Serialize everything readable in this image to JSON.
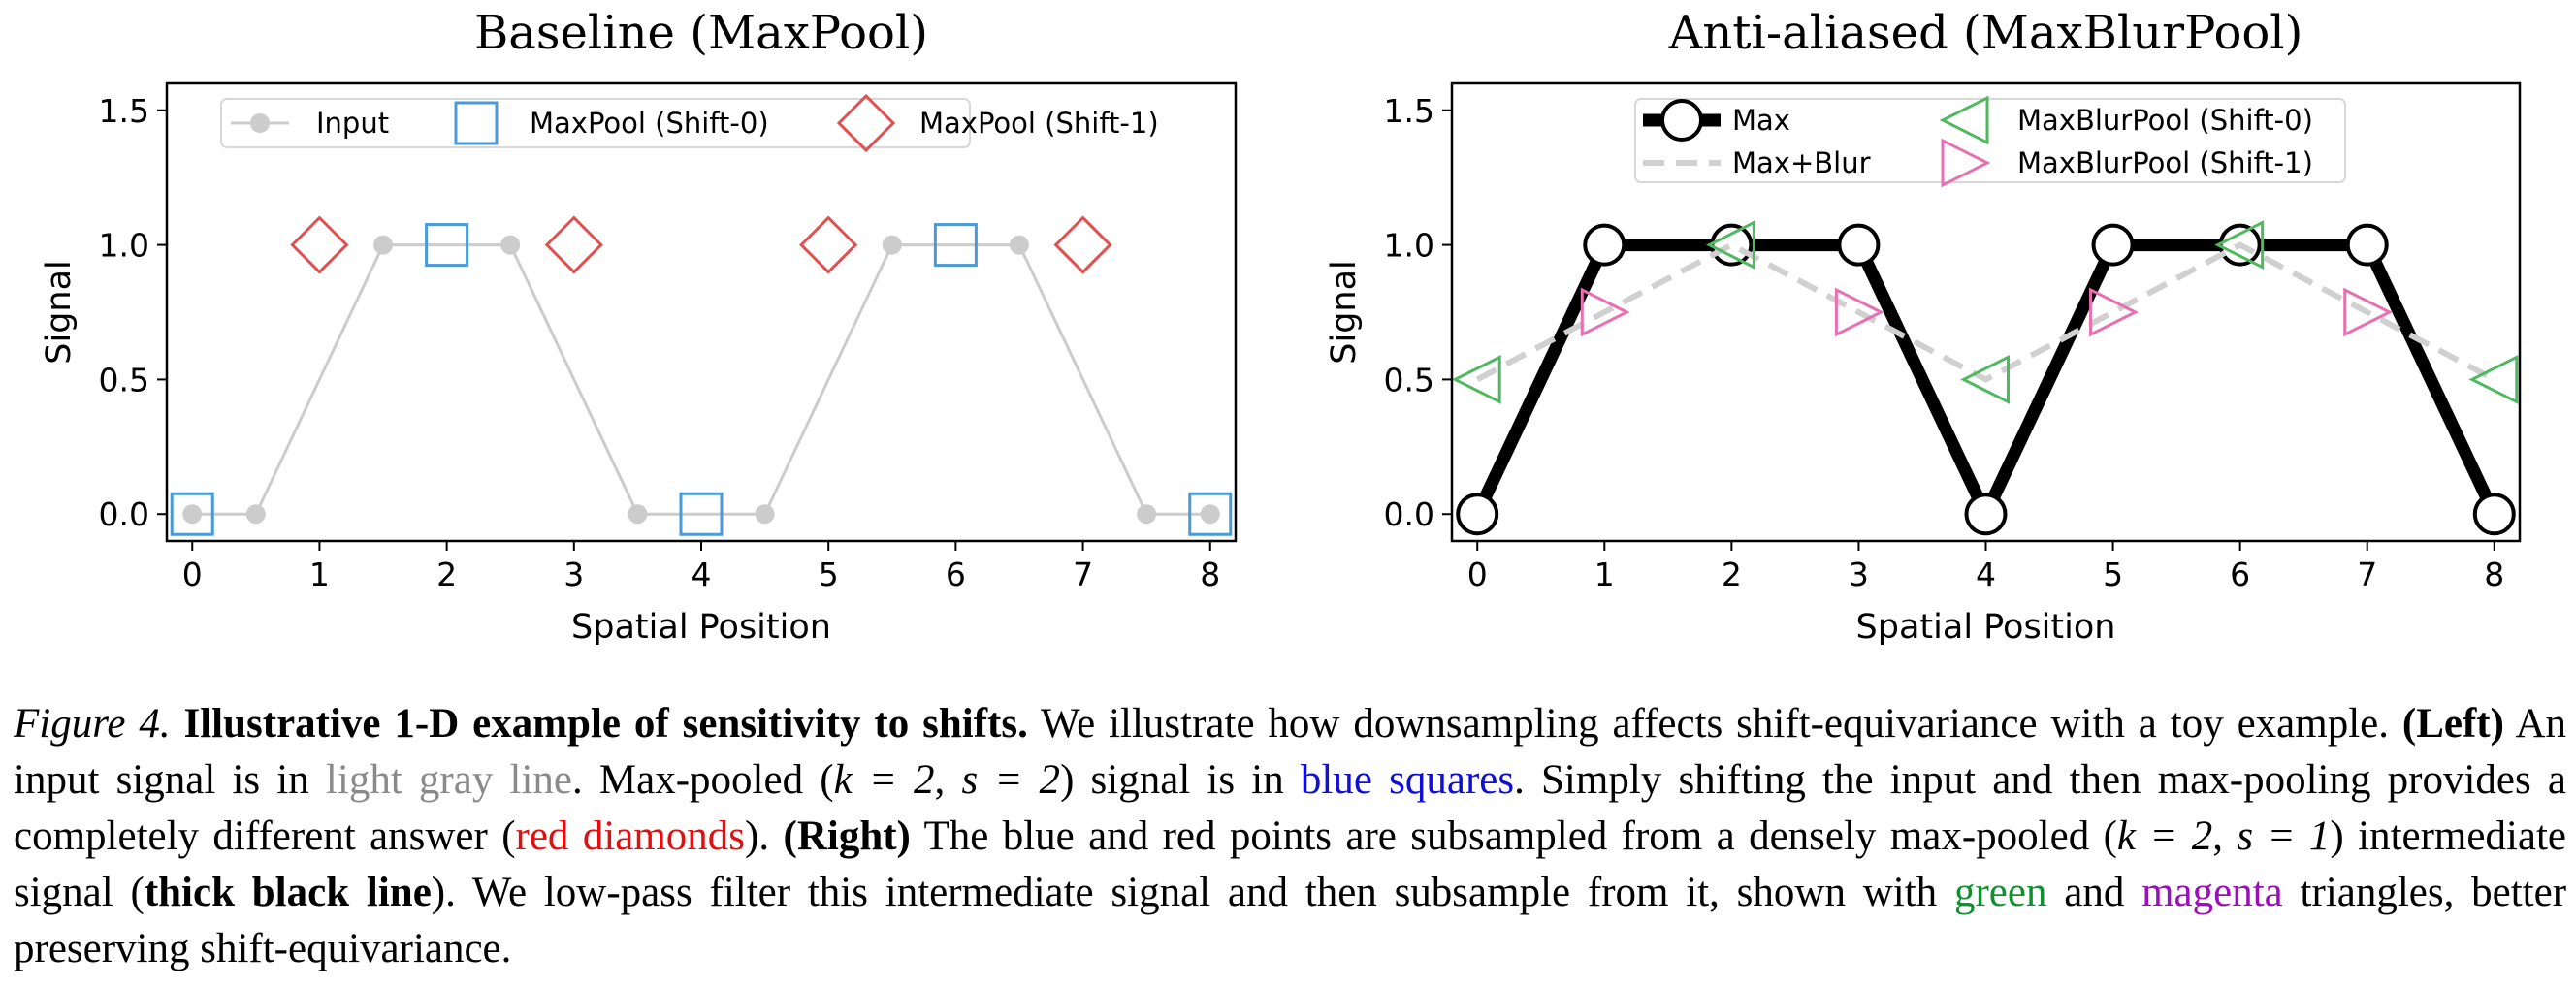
{
  "chart_data": [
    {
      "type": "line",
      "title": "Baseline (MaxPool)",
      "xlabel": "Spatial Position",
      "ylabel": "Signal",
      "xlim": [
        -0.2,
        8.2
      ],
      "ylim": [
        -0.1,
        1.6
      ],
      "xticks": [
        "0",
        "1",
        "2",
        "3",
        "4",
        "5",
        "6",
        "7",
        "8"
      ],
      "yticks": [
        "0.0",
        "0.5",
        "1.0",
        "1.5"
      ],
      "legend_position": "top",
      "series": [
        {
          "name": "Input",
          "kind": "line-dot",
          "color": "#cccccc",
          "x": [
            0,
            0.5,
            1.5,
            2.5,
            3.5,
            4.5,
            5.5,
            6.5,
            7.5,
            8
          ],
          "y": [
            0,
            0,
            1,
            1,
            0,
            0,
            1,
            1,
            0,
            0
          ]
        },
        {
          "name": "MaxPool (Shift-0)",
          "kind": "square",
          "color": "#4a9ad8",
          "x": [
            0,
            2,
            4,
            6,
            8
          ],
          "y": [
            0,
            1,
            0,
            1,
            0
          ]
        },
        {
          "name": "MaxPool (Shift-1)",
          "kind": "diamond",
          "color": "#e05050",
          "x": [
            1,
            3,
            5,
            7
          ],
          "y": [
            1,
            1,
            1,
            1
          ]
        }
      ]
    },
    {
      "type": "line",
      "title": "Anti-aliased (MaxBlurPool)",
      "xlabel": "Spatial Position",
      "ylabel": "Signal",
      "xlim": [
        -0.2,
        8.2
      ],
      "ylim": [
        -0.1,
        1.6
      ],
      "xticks": [
        "0",
        "1",
        "2",
        "3",
        "4",
        "5",
        "6",
        "7",
        "8"
      ],
      "yticks": [
        "0.0",
        "0.5",
        "1.0",
        "1.5"
      ],
      "legend_position": "top",
      "series": [
        {
          "name": "Max",
          "kind": "thick-line-circle",
          "color": "#000000",
          "x": [
            0,
            1,
            2,
            3,
            4,
            5,
            6,
            7,
            8
          ],
          "y": [
            0,
            1,
            1,
            1,
            0,
            1,
            1,
            1,
            0
          ]
        },
        {
          "name": "Max+Blur",
          "kind": "dashed",
          "color": "#d0d0d0",
          "x": [
            0,
            1,
            2,
            3,
            4,
            5,
            6,
            7,
            8
          ],
          "y": [
            0.5,
            0.75,
            1,
            0.75,
            0.5,
            0.75,
            1,
            0.75,
            0.5
          ]
        },
        {
          "name": "MaxBlurPool (Shift-0)",
          "kind": "triangle-left",
          "color": "#50b860",
          "x": [
            0,
            2,
            4,
            6,
            8
          ],
          "y": [
            0.5,
            1,
            0.5,
            1,
            0.5
          ]
        },
        {
          "name": "MaxBlurPool (Shift-1)",
          "kind": "triangle-right",
          "color": "#e870b0",
          "x": [
            1,
            3,
            5,
            7
          ],
          "y": [
            0.75,
            0.75,
            0.75,
            0.75
          ]
        }
      ]
    }
  ],
  "caption": {
    "label": "Figure 4.",
    "heading": "Illustrative 1-D example of sensitivity to shifts.",
    "s1": "We illustrate how downsampling affects shift-equivariance with a toy example.",
    "left": "(Left)",
    "s2a": "An input signal is in",
    "gray_text": "light gray line",
    "s2b": ". Max-pooled (",
    "k2": "k = 2",
    "comma1": ", ",
    "s2": "s = 2",
    "s2c": ") signal is in",
    "blue_text": "blue squares",
    "s3": ". Simply shifting the input and then max-pooling provides a completely different answer (",
    "red_text": "red diamonds",
    "s4": ").",
    "right": "(Right)",
    "s5": "The blue and red points are subsampled from a densely max-pooled (",
    "k2b": "k = 2",
    "comma2": ", ",
    "s1v": "s = 1",
    "s6": ") intermediate signal (",
    "thick_text": "thick black line",
    "s7": "). We low-pass filter this intermediate signal and then subsample from it, shown with",
    "green_text": "green",
    "and": "and",
    "magenta_text": "magenta",
    "s8": "triangles, better preserving shift-equivariance."
  }
}
